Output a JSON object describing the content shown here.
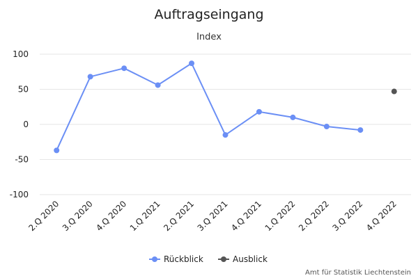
{
  "chart_data": {
    "type": "line",
    "title": "Auftragseingang",
    "subtitle": "Index",
    "categories": [
      "2.Q 2020",
      "3.Q 2020",
      "4.Q 2020",
      "1.Q 2021",
      "2.Q 2021",
      "3.Q 2021",
      "4.Q 2021",
      "1.Q 2022",
      "2.Q 2022",
      "3.Q 2022",
      "4.Q 2022"
    ],
    "ylim": [
      -100,
      100
    ],
    "yticks": [
      -100,
      -50,
      0,
      50,
      100
    ],
    "ytick_labels": [
      "-100",
      "-50",
      "0",
      "50",
      "100"
    ],
    "grid": true,
    "legend_position": "bottom-center",
    "series": [
      {
        "name": "Rückblick",
        "color": "#6b8ff5",
        "values": [
          -37,
          68,
          80,
          56,
          87,
          -15,
          18,
          10,
          -3,
          -8,
          null
        ]
      },
      {
        "name": "Ausblick",
        "color": "#555555",
        "values": [
          null,
          null,
          null,
          null,
          null,
          null,
          null,
          null,
          null,
          null,
          47
        ]
      }
    ],
    "credit": "Amt für Statistik Liechtenstein"
  }
}
